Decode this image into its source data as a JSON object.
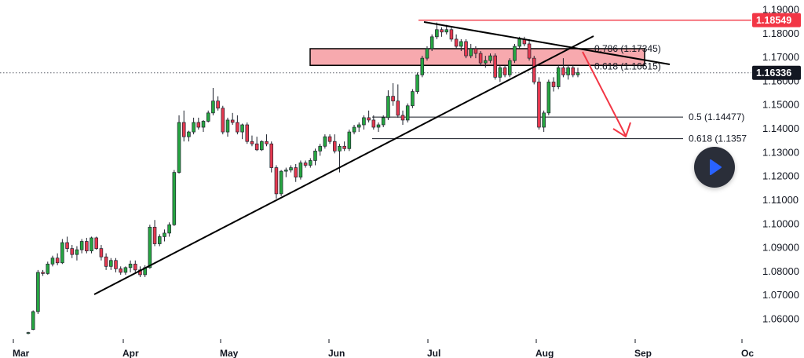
{
  "chart_data": {
    "type": "candlestick",
    "symbol_scale": "EURUSD-style price axis",
    "x_tick_labels": [
      "Mar",
      "Apr",
      "May",
      "Jun",
      "Jul",
      "Aug",
      "Sep",
      "Oc"
    ],
    "y_tick_labels": [
      "1.19000",
      "1.18000",
      "1.17000",
      "1.16000",
      "1.15000",
      "1.14000",
      "1.13000",
      "1.12000",
      "1.11000",
      "1.10000",
      "1.09000",
      "1.08000",
      "1.07000",
      "1.06000"
    ],
    "ylim": [
      1.0515,
      1.1935
    ],
    "grid": false,
    "colors": {
      "up": "#26a641",
      "down": "#e53950",
      "zone": "#f7a9ae",
      "tag_red": "#f23645",
      "tag_dark": "#131722"
    },
    "price_tags": {
      "high": {
        "label": "1.18549",
        "value": 1.18549
      },
      "last": {
        "label": "1.16336",
        "value": 1.16336
      }
    },
    "fib_levels": [
      {
        "label": "0.786 (1.17345)",
        "value": 1.17345
      },
      {
        "label": "0.618 (1.16615)",
        "value": 1.16615
      },
      {
        "label": "0.5 (1.14477)",
        "value": 1.14477
      },
      {
        "label": "0.618 (1.1357",
        "value": 1.1357
      }
    ],
    "resistance_zone": {
      "top": 1.1735,
      "bottom": 1.1665
    },
    "candles": [
      [
        1.054,
        1.0545,
        1.0535,
        1.0542
      ],
      [
        1.0555,
        1.0635,
        1.0552,
        1.063
      ],
      [
        1.063,
        1.0805,
        1.062,
        1.0795
      ],
      [
        1.0795,
        1.0805,
        1.078,
        1.079
      ],
      [
        1.079,
        1.084,
        1.0785,
        1.083
      ],
      [
        1.083,
        1.0865,
        1.082,
        1.0855
      ],
      [
        1.0855,
        1.0875,
        1.0825,
        1.0835
      ],
      [
        1.0835,
        1.0935,
        1.083,
        1.092
      ],
      [
        1.092,
        1.0945,
        1.088,
        1.0895
      ],
      [
        1.0895,
        1.091,
        1.0855,
        1.087
      ],
      [
        1.087,
        1.0905,
        1.0845,
        1.089
      ],
      [
        1.089,
        1.0935,
        1.0875,
        1.0925
      ],
      [
        1.0925,
        1.094,
        1.0875,
        1.0885
      ],
      [
        1.0885,
        1.0945,
        1.0875,
        1.094
      ],
      [
        1.094,
        1.0945,
        1.089,
        1.0895
      ],
      [
        1.0895,
        1.091,
        1.0845,
        1.086
      ],
      [
        1.086,
        1.0875,
        1.0805,
        1.082
      ],
      [
        1.082,
        1.0855,
        1.0805,
        1.0845
      ],
      [
        1.0845,
        1.0855,
        1.0795,
        1.081
      ],
      [
        1.081,
        1.082,
        1.0785,
        1.0795
      ],
      [
        1.0795,
        1.082,
        1.0785,
        1.0815
      ],
      [
        1.0815,
        1.0845,
        1.0795,
        1.083
      ],
      [
        1.083,
        1.0845,
        1.0795,
        1.0805
      ],
      [
        1.0805,
        1.082,
        1.0775,
        1.0785
      ],
      [
        1.0785,
        1.0825,
        1.0775,
        1.0815
      ],
      [
        1.0815,
        1.0995,
        1.081,
        1.0985
      ],
      [
        1.0985,
        1.1015,
        1.0905,
        1.0915
      ],
      [
        1.0915,
        1.0955,
        1.0905,
        1.0945
      ],
      [
        1.0945,
        1.0975,
        1.0925,
        1.096
      ],
      [
        1.096,
        1.1005,
        1.0945,
        1.0995
      ],
      [
        1.0995,
        1.1225,
        1.099,
        1.1215
      ],
      [
        1.1215,
        1.1455,
        1.121,
        1.1425
      ],
      [
        1.1425,
        1.1475,
        1.1345,
        1.1365
      ],
      [
        1.1365,
        1.139,
        1.1345,
        1.1385
      ],
      [
        1.1385,
        1.1445,
        1.1375,
        1.1425
      ],
      [
        1.1425,
        1.1445,
        1.1395,
        1.1405
      ],
      [
        1.1405,
        1.1435,
        1.1385,
        1.143
      ],
      [
        1.143,
        1.1475,
        1.1425,
        1.1465
      ],
      [
        1.1465,
        1.157,
        1.1455,
        1.1515
      ],
      [
        1.1515,
        1.1535,
        1.1475,
        1.1485
      ],
      [
        1.1485,
        1.1495,
        1.1375,
        1.1385
      ],
      [
        1.1385,
        1.1445,
        1.1365,
        1.1435
      ],
      [
        1.1435,
        1.1465,
        1.1415,
        1.1425
      ],
      [
        1.1425,
        1.1455,
        1.1375,
        1.1385
      ],
      [
        1.1385,
        1.142,
        1.1355,
        1.1415
      ],
      [
        1.1415,
        1.1425,
        1.1335,
        1.1345
      ],
      [
        1.1345,
        1.137,
        1.1325,
        1.1335
      ],
      [
        1.1335,
        1.1365,
        1.1305,
        1.131
      ],
      [
        1.131,
        1.135,
        1.1305,
        1.1345
      ],
      [
        1.1345,
        1.1375,
        1.1325,
        1.1335
      ],
      [
        1.1335,
        1.1345,
        1.1215,
        1.1235
      ],
      [
        1.1235,
        1.1245,
        1.1105,
        1.1125
      ],
      [
        1.1125,
        1.1225,
        1.1115,
        1.122
      ],
      [
        1.122,
        1.1235,
        1.1195,
        1.1225
      ],
      [
        1.1225,
        1.1245,
        1.1215,
        1.1235
      ],
      [
        1.1235,
        1.125,
        1.1175,
        1.1195
      ],
      [
        1.1195,
        1.1265,
        1.1185,
        1.1255
      ],
      [
        1.1255,
        1.1265,
        1.1235,
        1.1245
      ],
      [
        1.1245,
        1.1275,
        1.1235,
        1.1265
      ],
      [
        1.1265,
        1.1315,
        1.1245,
        1.1305
      ],
      [
        1.1305,
        1.1335,
        1.1285,
        1.1325
      ],
      [
        1.1325,
        1.1375,
        1.1315,
        1.1365
      ],
      [
        1.1365,
        1.1375,
        1.1335,
        1.1345
      ],
      [
        1.1345,
        1.1375,
        1.1295,
        1.1305
      ],
      [
        1.1305,
        1.1335,
        1.1215,
        1.1325
      ],
      [
        1.1325,
        1.1345,
        1.1305,
        1.1315
      ],
      [
        1.1315,
        1.1395,
        1.1305,
        1.1385
      ],
      [
        1.1385,
        1.1415,
        1.1375,
        1.1405
      ],
      [
        1.1405,
        1.1425,
        1.1385,
        1.1415
      ],
      [
        1.1415,
        1.1455,
        1.1395,
        1.1445
      ],
      [
        1.1445,
        1.1475,
        1.1425,
        1.1435
      ],
      [
        1.1435,
        1.1455,
        1.1395,
        1.1405
      ],
      [
        1.1405,
        1.1425,
        1.1385,
        1.1415
      ],
      [
        1.1415,
        1.1455,
        1.1405,
        1.1445
      ],
      [
        1.1445,
        1.156,
        1.1435,
        1.1535
      ],
      [
        1.1535,
        1.159,
        1.1495,
        1.1515
      ],
      [
        1.1515,
        1.1585,
        1.1445,
        1.1455
      ],
      [
        1.1455,
        1.1475,
        1.1415,
        1.1435
      ],
      [
        1.1435,
        1.1505,
        1.1425,
        1.1495
      ],
      [
        1.1495,
        1.1565,
        1.1485,
        1.1555
      ],
      [
        1.1555,
        1.1635,
        1.1545,
        1.1625
      ],
      [
        1.1625,
        1.1705,
        1.1615,
        1.1695
      ],
      [
        1.1695,
        1.1745,
        1.1685,
        1.1735
      ],
      [
        1.1735,
        1.1795,
        1.1725,
        1.1785
      ],
      [
        1.1785,
        1.1845,
        1.1775,
        1.1815
      ],
      [
        1.1815,
        1.1825,
        1.1785,
        1.1805
      ],
      [
        1.1805,
        1.1835,
        1.1795,
        1.1815
      ],
      [
        1.1815,
        1.1825,
        1.1765,
        1.1775
      ],
      [
        1.1775,
        1.1795,
        1.1735,
        1.1745
      ],
      [
        1.1745,
        1.1775,
        1.1725,
        1.1765
      ],
      [
        1.1765,
        1.1775,
        1.1695,
        1.1705
      ],
      [
        1.1705,
        1.1755,
        1.1695,
        1.1735
      ],
      [
        1.1735,
        1.1745,
        1.1695,
        1.1715
      ],
      [
        1.1715,
        1.1725,
        1.1665,
        1.1675
      ],
      [
        1.1675,
        1.1705,
        1.1655,
        1.1685
      ],
      [
        1.1685,
        1.1715,
        1.1675,
        1.1705
      ],
      [
        1.1705,
        1.1715,
        1.1605,
        1.1615
      ],
      [
        1.1615,
        1.1665,
        1.1595,
        1.1655
      ],
      [
        1.1655,
        1.1665,
        1.1615,
        1.1625
      ],
      [
        1.1625,
        1.1695,
        1.1615,
        1.1685
      ],
      [
        1.1685,
        1.1755,
        1.1675,
        1.1745
      ],
      [
        1.1745,
        1.1785,
        1.1735,
        1.1775
      ],
      [
        1.1775,
        1.1785,
        1.1745,
        1.1755
      ],
      [
        1.1755,
        1.1775,
        1.1685,
        1.1695
      ],
      [
        1.1695,
        1.1705,
        1.1585,
        1.1595
      ],
      [
        1.1595,
        1.1615,
        1.1395,
        1.1405
      ],
      [
        1.1405,
        1.1475,
        1.1385,
        1.1465
      ],
      [
        1.1465,
        1.1605,
        1.1455,
        1.1595
      ],
      [
        1.1595,
        1.1615,
        1.1555,
        1.1575
      ],
      [
        1.1575,
        1.1665,
        1.1565,
        1.1655
      ],
      [
        1.1655,
        1.1695,
        1.1615,
        1.1625
      ],
      [
        1.1625,
        1.1665,
        1.1605,
        1.1655
      ],
      [
        1.1655,
        1.1665,
        1.1615,
        1.1625
      ],
      [
        1.1625,
        1.1655,
        1.1615,
        1.1634
      ]
    ]
  }
}
